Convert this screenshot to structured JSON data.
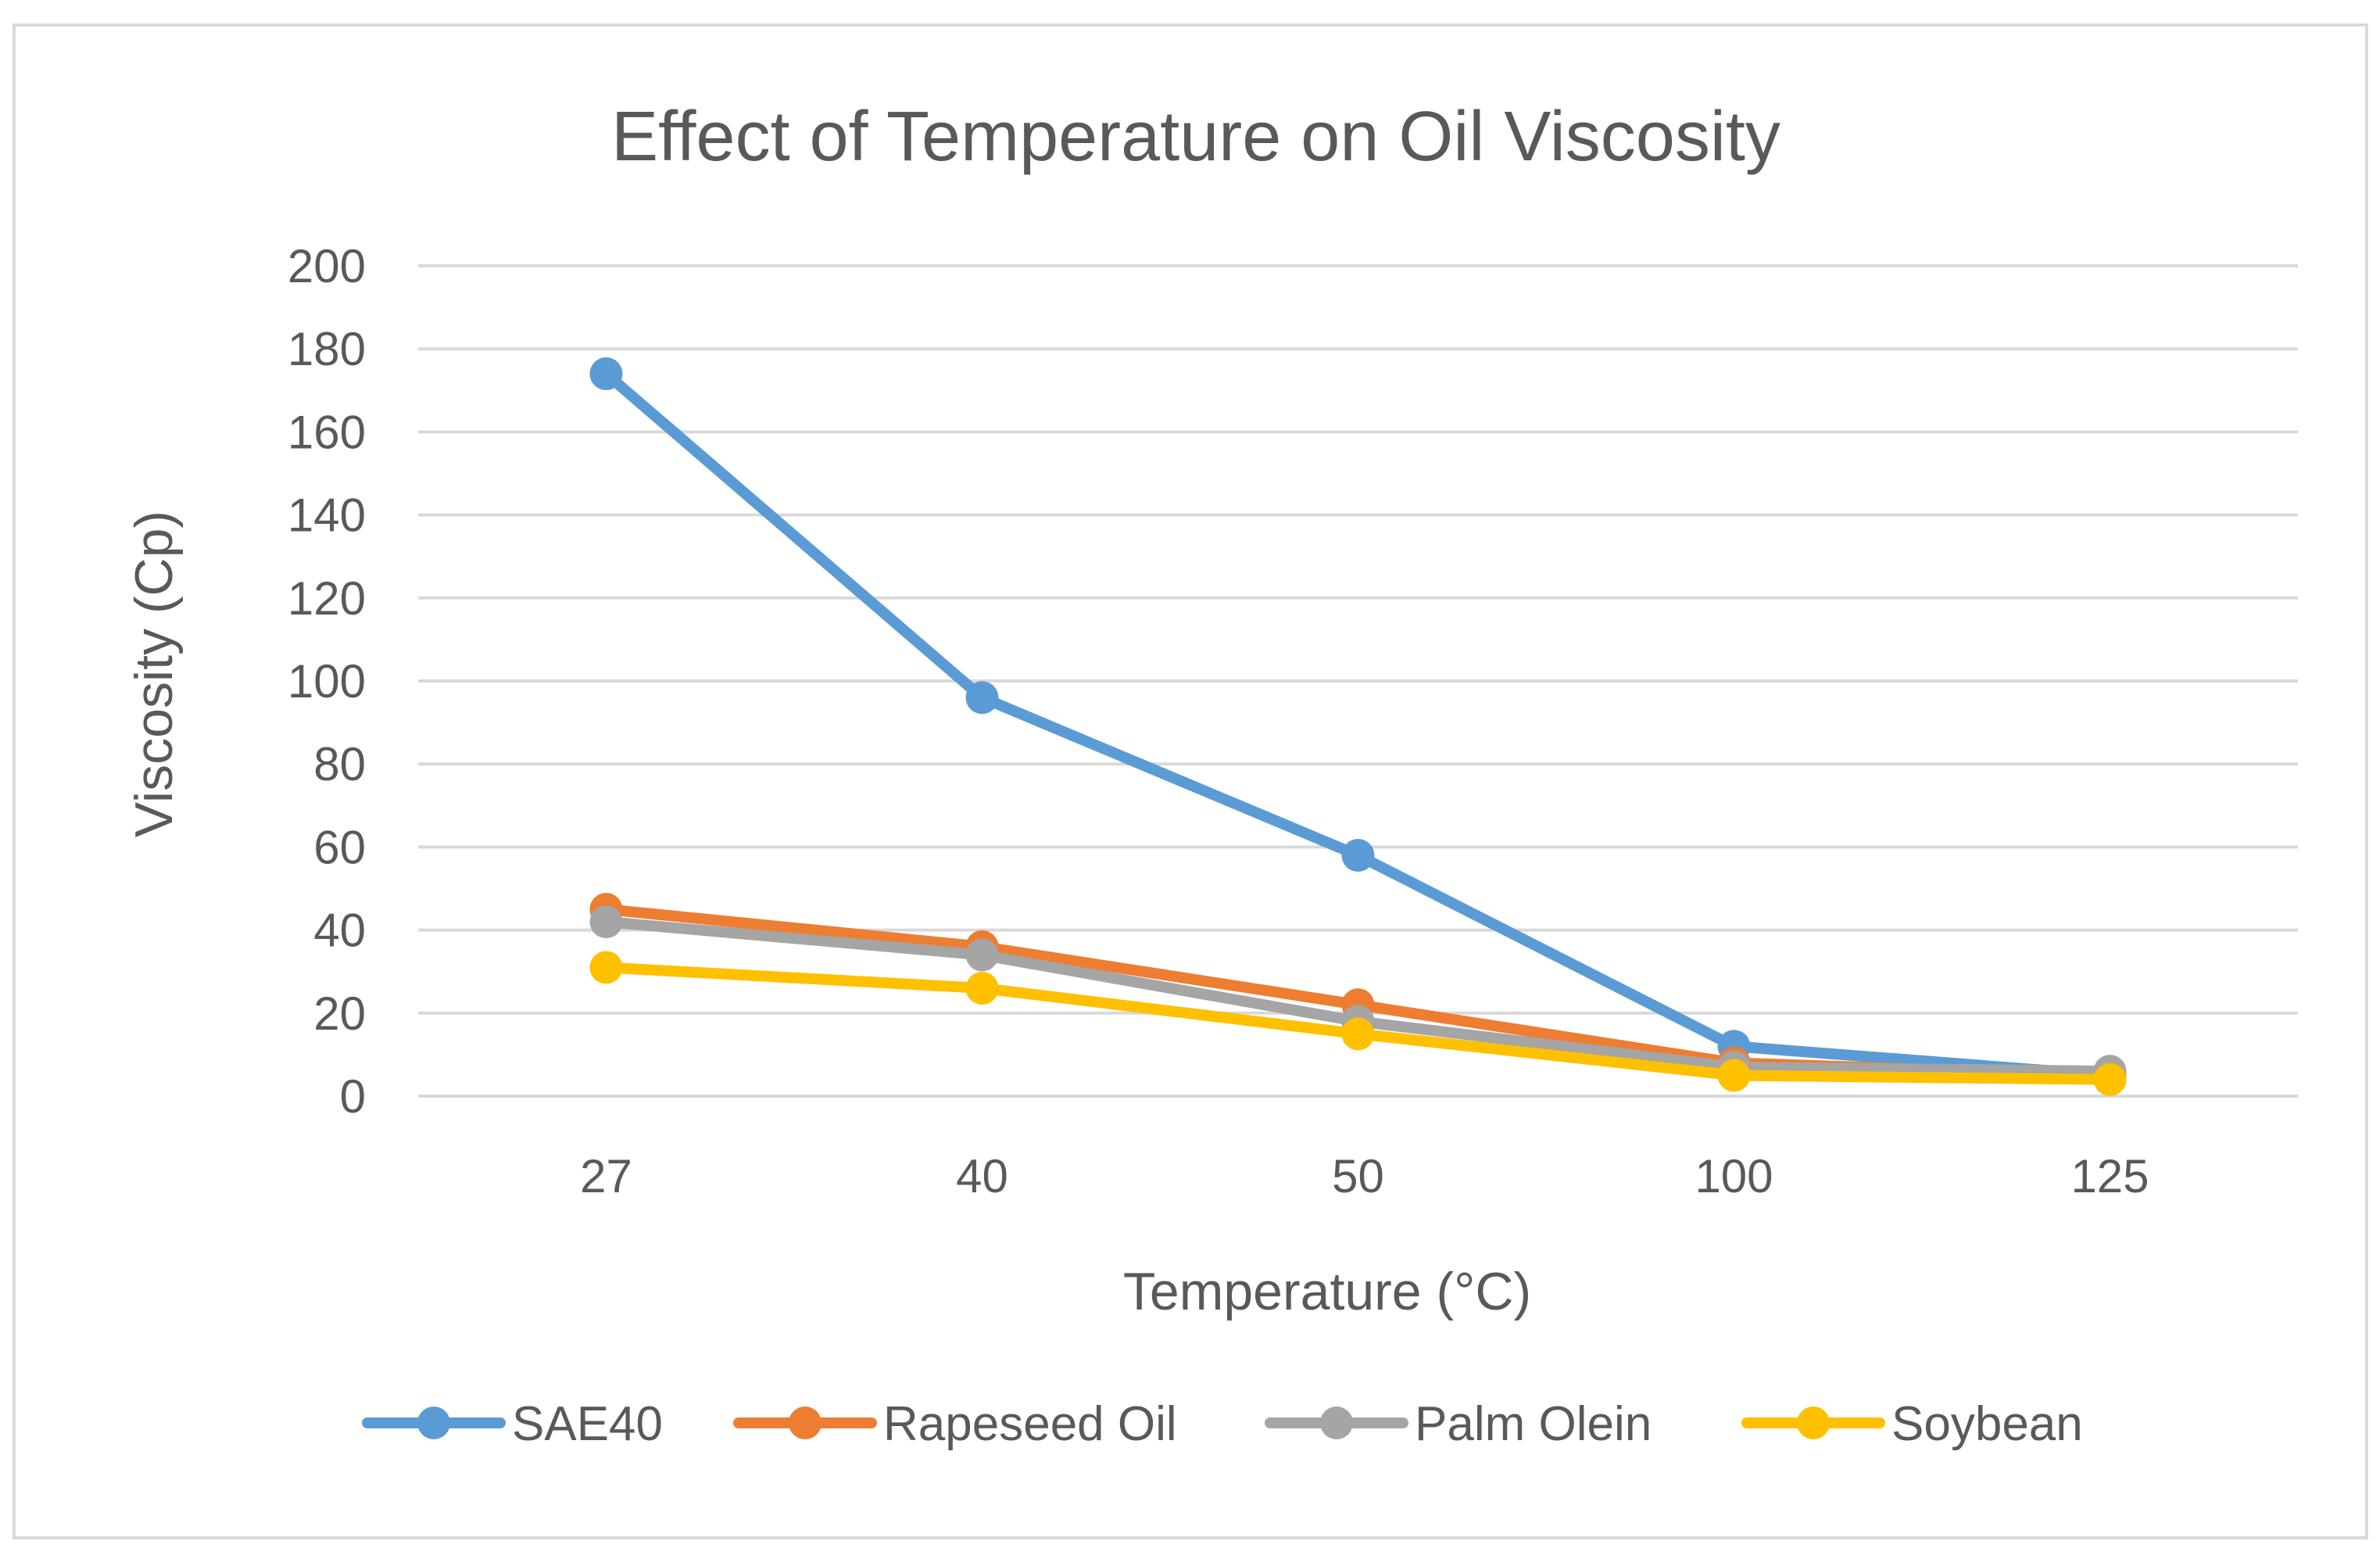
{
  "chart_data": {
    "type": "line",
    "title": "Effect of Temperature on Oil Viscosity",
    "xlabel": "Temperature (°C)",
    "ylabel": "Viscosity (Cp)",
    "categories": [
      "27",
      "40",
      "50",
      "100",
      "125"
    ],
    "ylim": [
      0,
      200
    ],
    "yticks": [
      0,
      20,
      40,
      60,
      80,
      100,
      120,
      140,
      160,
      180,
      200
    ],
    "grid": true,
    "legend_position": "bottom",
    "series": [
      {
        "name": "SAE40",
        "color": "#5B9BD5",
        "values": [
          174,
          96,
          58,
          12,
          5
        ]
      },
      {
        "name": "Rapeseed Oil",
        "color": "#ED7D31",
        "values": [
          45,
          36,
          22,
          8,
          5
        ]
      },
      {
        "name": "Palm Olein",
        "color": "#A5A5A5",
        "values": [
          42,
          34,
          18,
          7,
          6
        ]
      },
      {
        "name": "Soybean",
        "color": "#FFC000",
        "values": [
          31,
          26,
          15,
          5,
          4
        ]
      }
    ]
  }
}
